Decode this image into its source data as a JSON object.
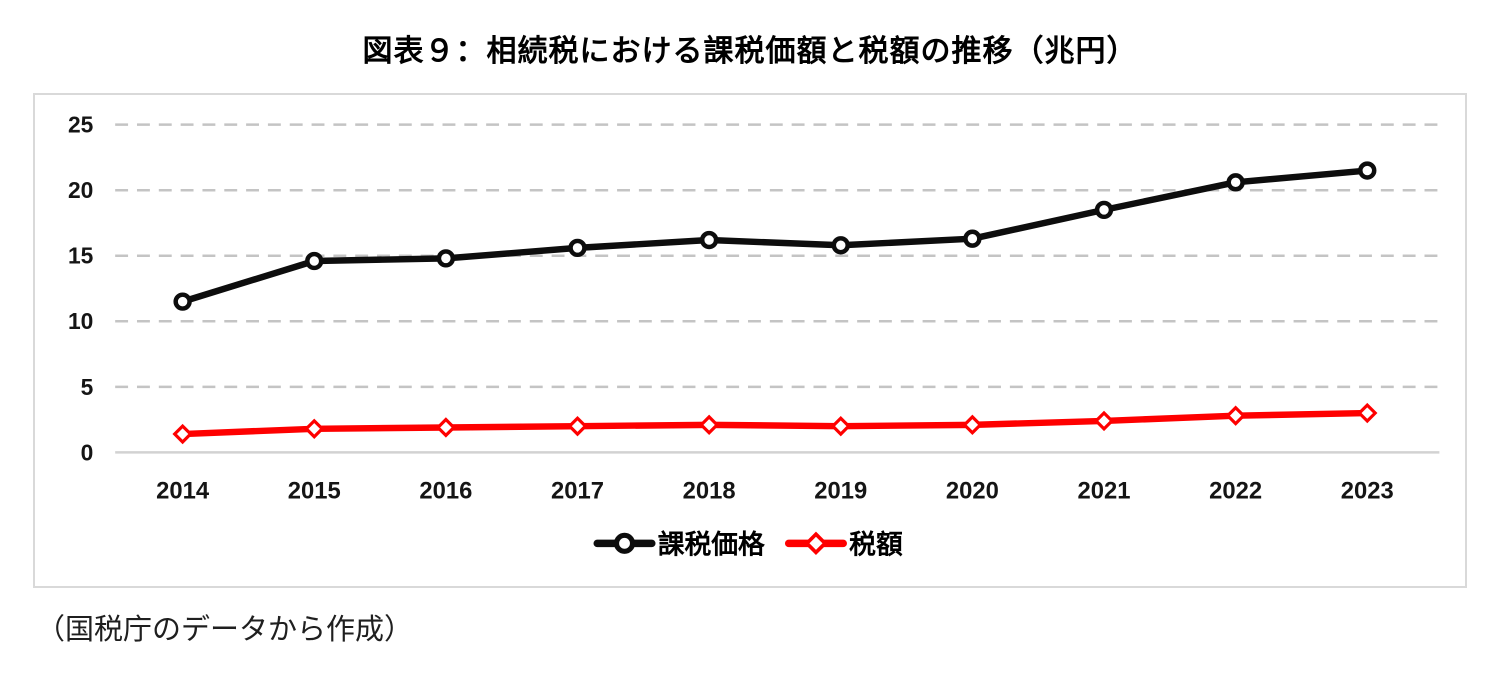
{
  "title": "図表９：相続税における課税価額と税額の推移（兆円）",
  "source_note": "（国税庁のデータから作成）",
  "chart_data": {
    "type": "line",
    "title": "図表９：相続税における課税価額と税額の推移（兆円）",
    "categories": [
      "2014",
      "2015",
      "2016",
      "2017",
      "2018",
      "2019",
      "2020",
      "2021",
      "2022",
      "2023"
    ],
    "series": [
      {
        "name": "課税価格",
        "color": "#0d0d0d",
        "marker": "circle",
        "values": [
          11.5,
          14.6,
          14.8,
          15.6,
          16.2,
          15.8,
          16.3,
          18.5,
          20.6,
          21.5
        ]
      },
      {
        "name": "税額",
        "color": "#fe0000",
        "marker": "diamond",
        "values": [
          1.4,
          1.8,
          1.9,
          2.0,
          2.1,
          2.0,
          2.1,
          2.4,
          2.8,
          3.0
        ]
      }
    ],
    "xlabel": "",
    "ylabel": "",
    "ylim": [
      0,
      25
    ],
    "ytick_step": 5,
    "grid": "horizontal-dashed",
    "grid_color": "#c4c4c4",
    "axis_color": "#d2d2d2",
    "frame_color": "#d9d9d9",
    "legend_position": "bottom-inside"
  }
}
